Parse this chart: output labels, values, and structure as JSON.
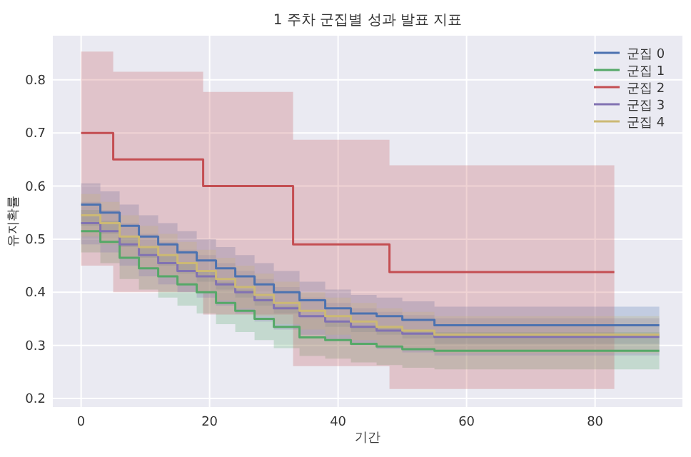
{
  "chart_data": {
    "type": "step",
    "title": "1 주차 군집별 성과 발표 지표",
    "xlabel": "기간",
    "ylabel": "유지확률",
    "xlim": [
      -4.4,
      93.6
    ],
    "ylim": [
      0.184,
      0.883
    ],
    "xticks": [
      0,
      20,
      40,
      60,
      80
    ],
    "yticks": [
      0.2,
      0.3,
      0.4,
      0.5,
      0.6,
      0.7,
      0.8
    ],
    "grid": true,
    "legend": "top right",
    "series": [
      {
        "name": "군집 0",
        "color": "#4c72b0",
        "x": [
          0,
          3,
          6,
          9,
          12,
          15,
          18,
          21,
          24,
          27,
          30,
          34,
          38,
          42,
          46,
          50,
          55,
          60,
          70,
          80,
          90
        ],
        "values": [
          0.565,
          0.55,
          0.525,
          0.505,
          0.49,
          0.475,
          0.46,
          0.445,
          0.43,
          0.415,
          0.4,
          0.385,
          0.37,
          0.36,
          0.355,
          0.348,
          0.338,
          0.338,
          0.338,
          0.338,
          0.338
        ],
        "upper": [
          0.605,
          0.59,
          0.565,
          0.545,
          0.53,
          0.515,
          0.5,
          0.485,
          0.47,
          0.455,
          0.44,
          0.42,
          0.405,
          0.395,
          0.39,
          0.383,
          0.373,
          0.373,
          0.373,
          0.373,
          0.373
        ],
        "lower": [
          0.525,
          0.51,
          0.485,
          0.465,
          0.45,
          0.435,
          0.42,
          0.405,
          0.39,
          0.375,
          0.36,
          0.35,
          0.335,
          0.325,
          0.32,
          0.313,
          0.303,
          0.303,
          0.303,
          0.303,
          0.303
        ]
      },
      {
        "name": "군집 1",
        "color": "#55a868",
        "x": [
          0,
          3,
          6,
          9,
          12,
          15,
          18,
          21,
          24,
          27,
          30,
          34,
          38,
          42,
          46,
          50,
          55,
          60,
          70,
          80,
          90
        ],
        "values": [
          0.515,
          0.495,
          0.465,
          0.445,
          0.43,
          0.415,
          0.4,
          0.38,
          0.365,
          0.35,
          0.335,
          0.315,
          0.31,
          0.303,
          0.298,
          0.293,
          0.29,
          0.29,
          0.29,
          0.29,
          0.29
        ],
        "upper": [
          0.555,
          0.535,
          0.505,
          0.485,
          0.47,
          0.455,
          0.44,
          0.42,
          0.405,
          0.39,
          0.375,
          0.35,
          0.345,
          0.338,
          0.333,
          0.328,
          0.325,
          0.325,
          0.325,
          0.325,
          0.325
        ],
        "lower": [
          0.475,
          0.455,
          0.425,
          0.405,
          0.39,
          0.375,
          0.36,
          0.34,
          0.325,
          0.31,
          0.295,
          0.28,
          0.275,
          0.268,
          0.263,
          0.258,
          0.255,
          0.255,
          0.255,
          0.255,
          0.255
        ]
      },
      {
        "name": "군집 2",
        "color": "#c44e52",
        "x": [
          0,
          5,
          19,
          33,
          48,
          83
        ],
        "values": [
          0.7,
          0.65,
          0.6,
          0.49,
          0.438,
          0.438
        ],
        "upper": [
          0.853,
          0.815,
          0.777,
          0.687,
          0.639,
          0.639
        ],
        "lower": [
          0.45,
          0.4,
          0.358,
          0.261,
          0.218,
          0.218
        ]
      },
      {
        "name": "군집 3",
        "color": "#8172b2",
        "x": [
          0,
          3,
          6,
          9,
          12,
          15,
          18,
          21,
          24,
          27,
          30,
          34,
          38,
          42,
          46,
          50,
          55,
          60,
          70,
          80,
          90
        ],
        "values": [
          0.53,
          0.515,
          0.49,
          0.47,
          0.455,
          0.44,
          0.43,
          0.415,
          0.4,
          0.385,
          0.37,
          0.355,
          0.345,
          0.335,
          0.328,
          0.322,
          0.316,
          0.316,
          0.316,
          0.316,
          0.316
        ],
        "upper": [
          0.57,
          0.555,
          0.53,
          0.51,
          0.495,
          0.48,
          0.47,
          0.455,
          0.44,
          0.425,
          0.41,
          0.39,
          0.38,
          0.37,
          0.363,
          0.357,
          0.351,
          0.351,
          0.351,
          0.351,
          0.351
        ],
        "lower": [
          0.49,
          0.475,
          0.45,
          0.43,
          0.415,
          0.4,
          0.39,
          0.375,
          0.36,
          0.345,
          0.33,
          0.32,
          0.31,
          0.3,
          0.293,
          0.287,
          0.281,
          0.281,
          0.281,
          0.281,
          0.281
        ]
      },
      {
        "name": "군집 4",
        "color": "#ccb974",
        "x": [
          0,
          3,
          6,
          9,
          12,
          15,
          18,
          21,
          24,
          27,
          30,
          34,
          38,
          42,
          46,
          50,
          55,
          60,
          70,
          80,
          90
        ],
        "values": [
          0.545,
          0.53,
          0.505,
          0.485,
          0.47,
          0.455,
          0.44,
          0.425,
          0.41,
          0.395,
          0.38,
          0.365,
          0.355,
          0.345,
          0.335,
          0.328,
          0.32,
          0.32,
          0.32,
          0.32,
          0.32
        ],
        "upper": [
          0.585,
          0.57,
          0.545,
          0.525,
          0.51,
          0.495,
          0.48,
          0.465,
          0.45,
          0.435,
          0.42,
          0.4,
          0.39,
          0.38,
          0.37,
          0.363,
          0.355,
          0.355,
          0.355,
          0.355,
          0.355
        ],
        "lower": [
          0.505,
          0.49,
          0.465,
          0.445,
          0.43,
          0.415,
          0.4,
          0.385,
          0.37,
          0.355,
          0.34,
          0.33,
          0.32,
          0.31,
          0.3,
          0.293,
          0.285,
          0.285,
          0.285,
          0.285,
          0.285
        ]
      }
    ]
  }
}
